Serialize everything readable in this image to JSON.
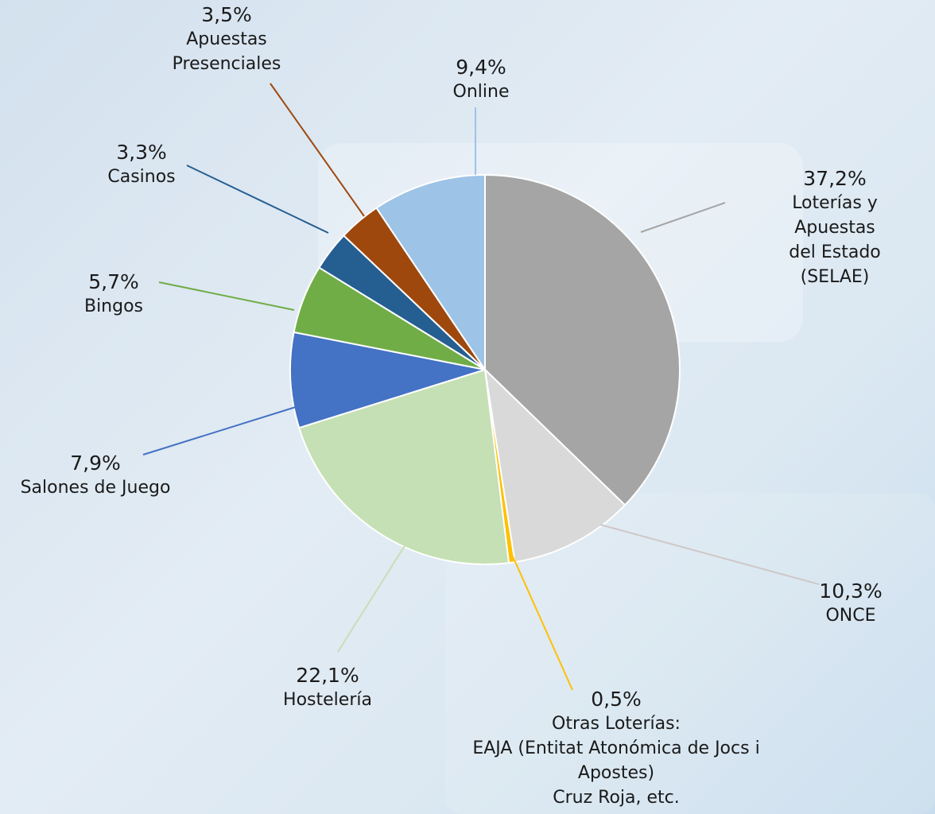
{
  "chart_data": {
    "type": "pie",
    "categories": [
      "Loterías y Apuestas\ndel Estado (SELAE)",
      "ONCE",
      "Otras Loterías:\nEAJA (Entitat Atonómica de Jocs i\nApostes)\nCruz Roja, etc.",
      "Hostelería",
      "Salones de Juego",
      "Bingos",
      "Casinos",
      "Apuestas\nPresenciales",
      "Online"
    ],
    "values": [
      37.2,
      10.3,
      0.5,
      22.1,
      7.9,
      5.7,
      3.3,
      3.5,
      9.4
    ],
    "value_labels": [
      "37,2%",
      "10,3%",
      "0,5%",
      "22,1%",
      "7,9%",
      "5,7%",
      "3,3%",
      "3,5%",
      "9,4%"
    ],
    "colors": [
      "#a5a5a5",
      "#d9d9d9",
      "#ffc000",
      "#c5e0b4",
      "#4472c4",
      "#70ad47",
      "#255e91",
      "#9e480e",
      "#9dc3e6"
    ]
  }
}
